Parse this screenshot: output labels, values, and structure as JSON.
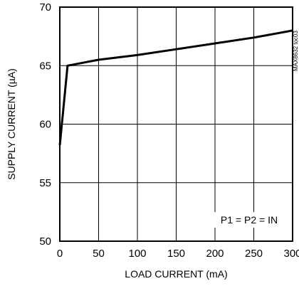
{
  "chart_data": {
    "type": "line",
    "xlabel": "LOAD CURRENT (mA)",
    "ylabel": "SUPPLY CURRENT (µA)",
    "xlim": [
      0,
      300
    ],
    "ylim": [
      50,
      70
    ],
    "xticks": [
      0,
      50,
      100,
      150,
      200,
      250,
      300
    ],
    "yticks": [
      50,
      55,
      60,
      65,
      70
    ],
    "grid": true,
    "annotation": "P1 = P2 = IN",
    "side_label": "MAX8632 toc03",
    "series": [
      {
        "x": [
          0,
          10,
          50,
          100,
          150,
          200,
          250,
          300
        ],
        "y": [
          58.2,
          65.0,
          65.5,
          65.9,
          66.4,
          66.9,
          67.4,
          68.0
        ]
      }
    ]
  }
}
